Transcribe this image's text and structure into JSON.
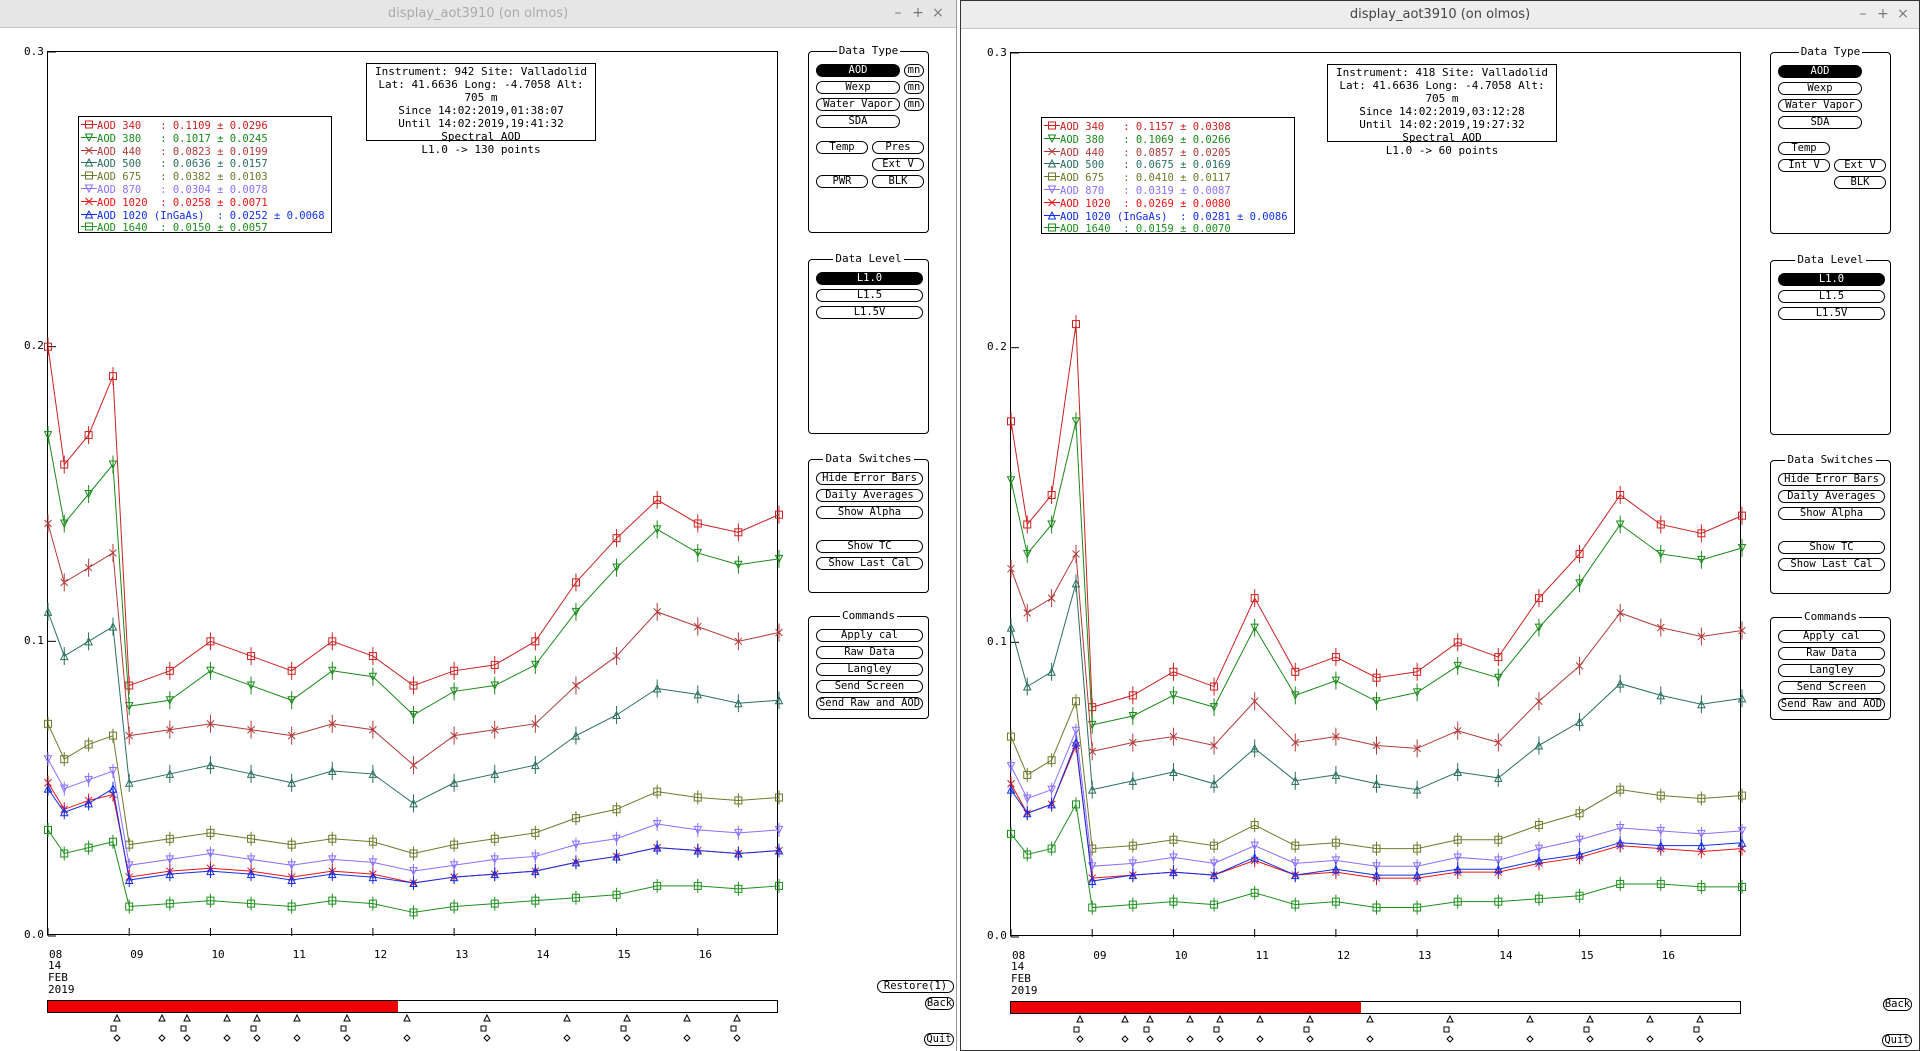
{
  "windows": [
    {
      "title": "display_aot3910 (on olmos)",
      "info": [
        "Instrument: 942 Site: Valladolid",
        "Lat: 41.6636 Long: -4.7058 Alt: 705 m",
        "Since 14:02:2019,01:38:07",
        "Until 14:02:2019,19:41:32",
        "Spectral AOD",
        "L1.0 -> 130 points"
      ],
      "legend": [
        {
          "name": "AOD 340",
          "text": "AOD 340   : 0.1109 ± 0.0296",
          "color": "#cc2020",
          "marker": "square"
        },
        {
          "name": "AOD 380",
          "text": "AOD 380   : 0.1017 ± 0.0245",
          "color": "#1a8a1a",
          "marker": "tri-down"
        },
        {
          "name": "AOD 440",
          "text": "AOD 440   : 0.0823 ± 0.0199",
          "color": "#b23a3a",
          "marker": "x"
        },
        {
          "name": "AOD 500",
          "text": "AOD 500   : 0.0636 ± 0.0157",
          "color": "#2a6f5e",
          "marker": "tri-up"
        },
        {
          "name": "AOD 675",
          "text": "AOD 675   : 0.0382 ± 0.0103",
          "color": "#6b7a2a",
          "marker": "square"
        },
        {
          "name": "AOD 870",
          "text": "AOD 870   : 0.0304 ± 0.0078",
          "color": "#8a6fff",
          "marker": "tri-down"
        },
        {
          "name": "AOD 1020",
          "text": "AOD 1020  : 0.0258 ± 0.0071",
          "color": "#ee1111",
          "marker": "x"
        },
        {
          "name": "AOD 1020 (InGaAs)",
          "text": "AOD 1020 (InGaAs)  : 0.0252 ± 0.0068",
          "color": "#1030ee",
          "marker": "tri-up"
        },
        {
          "name": "AOD 1640",
          "text": "AOD 1640  : 0.0150 ± 0.0057",
          "color": "#1d8f1d",
          "marker": "square"
        }
      ],
      "data_type": {
        "title": "Data Type",
        "items": [
          {
            "label": "AOD",
            "selected": true,
            "mn": true
          },
          {
            "label": "Wexp",
            "mn": true
          },
          {
            "label": "Water Vapor",
            "mn": true
          },
          {
            "label": "SDA"
          }
        ],
        "row1": [
          "Temp",
          "Pres"
        ],
        "row2": [
          "Ext V"
        ],
        "row3": [
          "PWR",
          "BLK"
        ],
        "mn": "mn"
      },
      "time_fill": 0.48
    },
    {
      "title": "display_aot3910 (on olmos)",
      "info": [
        "Instrument: 418 Site: Valladolid",
        "Lat: 41.6636 Long: -4.7058 Alt: 705 m",
        "Since 14:02:2019,03:12:28",
        "Until 14:02:2019,19:27:32",
        "Spectral AOD",
        "L1.0 -> 60 points"
      ],
      "legend": [
        {
          "name": "AOD 340",
          "text": "AOD 340   : 0.1157 ± 0.0308",
          "color": "#cc2020",
          "marker": "square"
        },
        {
          "name": "AOD 380",
          "text": "AOD 380   : 0.1069 ± 0.0266",
          "color": "#1a8a1a",
          "marker": "tri-down"
        },
        {
          "name": "AOD 440",
          "text": "AOD 440   : 0.0857 ± 0.0205",
          "color": "#b23a3a",
          "marker": "x"
        },
        {
          "name": "AOD 500",
          "text": "AOD 500   : 0.0675 ± 0.0169",
          "color": "#2a6f5e",
          "marker": "tri-up"
        },
        {
          "name": "AOD 675",
          "text": "AOD 675   : 0.0410 ± 0.0117",
          "color": "#6b7a2a",
          "marker": "square"
        },
        {
          "name": "AOD 870",
          "text": "AOD 870   : 0.0319 ± 0.0087",
          "color": "#8a6fff",
          "marker": "tri-down"
        },
        {
          "name": "AOD 1020",
          "text": "AOD 1020  : 0.0269 ± 0.0080",
          "color": "#ee1111",
          "marker": "x"
        },
        {
          "name": "AOD 1020 (InGaAs)",
          "text": "AOD 1020 (InGaAs)  : 0.0281 ± 0.0086",
          "color": "#1030ee",
          "marker": "tri-up"
        },
        {
          "name": "AOD 1640",
          "text": "AOD 1640  : 0.0159 ± 0.0070",
          "color": "#1d8f1d",
          "marker": "square"
        }
      ],
      "data_type": {
        "title": "Data Type",
        "items": [
          {
            "label": "AOD",
            "selected": true
          },
          {
            "label": "Wexp"
          },
          {
            "label": "Water Vapor"
          },
          {
            "label": "SDA"
          }
        ],
        "row1": [
          "Temp"
        ],
        "row2": [
          "Int V",
          "Ext V"
        ],
        "row3": [
          "BLK"
        ]
      },
      "time_fill": 0.48
    }
  ],
  "shared": {
    "yticks": [
      "0.3",
      "0.2",
      "0.1",
      "0.0"
    ],
    "xticks": [
      "08",
      "09",
      "10",
      "11",
      "12",
      "13",
      "14",
      "15",
      "16"
    ],
    "xsub": [
      "14",
      "FEB",
      "2019"
    ],
    "data_level": {
      "title": "Data Level",
      "items": [
        "L1.0",
        "L1.5",
        "L1.5V"
      ]
    },
    "data_switches": {
      "title": "Data Switches",
      "items": [
        "Hide Error Bars",
        "Daily Averages",
        "Show Alpha",
        "Show TC",
        "Show Last Cal"
      ]
    },
    "commands": {
      "title": "Commands",
      "items": [
        "Apply cal",
        "Raw Data",
        "Langley",
        "Send Screen",
        "Send Raw and AOD"
      ]
    },
    "restore": "Restore(1)",
    "back": "Back",
    "quit": "Quit",
    "window_buttons": [
      "–",
      "+",
      "×"
    ]
  },
  "chart_data": [
    {
      "type": "line",
      "title": "Spectral AOD",
      "x": [
        8.0,
        8.2,
        8.5,
        8.8,
        9.0,
        9.5,
        10.0,
        10.5,
        11.0,
        11.5,
        12.0,
        12.5,
        13.0,
        13.5,
        14.0,
        14.5,
        15.0,
        15.5,
        16.0,
        16.5,
        17.0
      ],
      "ylim": [
        0.0,
        0.3
      ],
      "xlabel_ticks": [
        "08",
        "09",
        "10",
        "11",
        "12",
        "13",
        "14",
        "15",
        "16"
      ],
      "series": [
        {
          "name": "AOD 340",
          "values": [
            0.2,
            0.16,
            0.17,
            0.19,
            0.085,
            0.09,
            0.1,
            0.095,
            0.09,
            0.1,
            0.095,
            0.085,
            0.09,
            0.092,
            0.1,
            0.12,
            0.135,
            0.148,
            0.14,
            0.137,
            0.143
          ]
        },
        {
          "name": "AOD 380",
          "values": [
            0.17,
            0.14,
            0.15,
            0.16,
            0.078,
            0.08,
            0.09,
            0.085,
            0.08,
            0.09,
            0.088,
            0.075,
            0.083,
            0.085,
            0.092,
            0.11,
            0.125,
            0.138,
            0.13,
            0.126,
            0.128
          ]
        },
        {
          "name": "AOD 440",
          "values": [
            0.14,
            0.12,
            0.125,
            0.13,
            0.068,
            0.07,
            0.072,
            0.07,
            0.068,
            0.072,
            0.07,
            0.058,
            0.068,
            0.07,
            0.072,
            0.085,
            0.095,
            0.11,
            0.105,
            0.1,
            0.103
          ]
        },
        {
          "name": "AOD 500",
          "values": [
            0.11,
            0.095,
            0.1,
            0.105,
            0.052,
            0.055,
            0.058,
            0.055,
            0.052,
            0.056,
            0.055,
            0.045,
            0.052,
            0.055,
            0.058,
            0.068,
            0.075,
            0.084,
            0.082,
            0.079,
            0.08
          ]
        },
        {
          "name": "AOD 675",
          "values": [
            0.072,
            0.06,
            0.065,
            0.068,
            0.031,
            0.033,
            0.035,
            0.033,
            0.031,
            0.033,
            0.032,
            0.028,
            0.031,
            0.033,
            0.035,
            0.04,
            0.043,
            0.049,
            0.047,
            0.046,
            0.047
          ]
        },
        {
          "name": "AOD 870",
          "values": [
            0.06,
            0.05,
            0.053,
            0.056,
            0.024,
            0.026,
            0.028,
            0.026,
            0.024,
            0.026,
            0.025,
            0.022,
            0.024,
            0.026,
            0.027,
            0.031,
            0.033,
            0.038,
            0.036,
            0.035,
            0.036
          ]
        },
        {
          "name": "AOD 1020",
          "values": [
            0.052,
            0.043,
            0.046,
            0.048,
            0.02,
            0.022,
            0.023,
            0.022,
            0.02,
            0.022,
            0.021,
            0.018,
            0.02,
            0.021,
            0.022,
            0.025,
            0.027,
            0.03,
            0.029,
            0.028,
            0.029
          ]
        },
        {
          "name": "AOD 1020 (InGaAs)",
          "values": [
            0.05,
            0.042,
            0.045,
            0.05,
            0.019,
            0.021,
            0.022,
            0.021,
            0.019,
            0.021,
            0.02,
            0.018,
            0.02,
            0.021,
            0.022,
            0.025,
            0.027,
            0.03,
            0.029,
            0.028,
            0.029
          ]
        },
        {
          "name": "AOD 1640",
          "values": [
            0.036,
            0.028,
            0.03,
            0.032,
            0.01,
            0.011,
            0.012,
            0.011,
            0.01,
            0.012,
            0.011,
            0.008,
            0.01,
            0.011,
            0.012,
            0.013,
            0.014,
            0.017,
            0.017,
            0.016,
            0.017
          ]
        }
      ]
    },
    {
      "type": "line",
      "title": "Spectral AOD",
      "x": [
        8.0,
        8.2,
        8.5,
        8.8,
        9.0,
        9.5,
        10.0,
        10.5,
        11.0,
        11.5,
        12.0,
        12.5,
        13.0,
        13.5,
        14.0,
        14.5,
        15.0,
        15.5,
        16.0,
        16.5,
        17.0
      ],
      "ylim": [
        0.0,
        0.3
      ],
      "xlabel_ticks": [
        "08",
        "09",
        "10",
        "11",
        "12",
        "13",
        "14",
        "15",
        "16"
      ],
      "series": [
        {
          "name": "AOD 340",
          "values": [
            0.175,
            0.14,
            0.15,
            0.208,
            0.078,
            0.082,
            0.09,
            0.085,
            0.115,
            0.09,
            0.095,
            0.088,
            0.09,
            0.1,
            0.095,
            0.115,
            0.13,
            0.15,
            0.14,
            0.137,
            0.143
          ]
        },
        {
          "name": "AOD 380",
          "values": [
            0.155,
            0.13,
            0.14,
            0.175,
            0.072,
            0.075,
            0.082,
            0.078,
            0.105,
            0.082,
            0.087,
            0.08,
            0.083,
            0.092,
            0.088,
            0.105,
            0.12,
            0.14,
            0.13,
            0.128,
            0.132
          ]
        },
        {
          "name": "AOD 440",
          "values": [
            0.125,
            0.11,
            0.115,
            0.13,
            0.063,
            0.066,
            0.068,
            0.065,
            0.08,
            0.066,
            0.068,
            0.065,
            0.064,
            0.07,
            0.066,
            0.08,
            0.092,
            0.11,
            0.105,
            0.102,
            0.104
          ]
        },
        {
          "name": "AOD 500",
          "values": [
            0.105,
            0.085,
            0.09,
            0.12,
            0.05,
            0.053,
            0.056,
            0.052,
            0.064,
            0.053,
            0.055,
            0.052,
            0.05,
            0.056,
            0.054,
            0.065,
            0.073,
            0.086,
            0.082,
            0.079,
            0.081
          ]
        },
        {
          "name": "AOD 675",
          "values": [
            0.068,
            0.055,
            0.06,
            0.08,
            0.03,
            0.031,
            0.033,
            0.031,
            0.038,
            0.031,
            0.032,
            0.03,
            0.03,
            0.033,
            0.033,
            0.038,
            0.042,
            0.05,
            0.048,
            0.047,
            0.048
          ]
        },
        {
          "name": "AOD 870",
          "values": [
            0.058,
            0.047,
            0.05,
            0.07,
            0.024,
            0.025,
            0.027,
            0.025,
            0.031,
            0.025,
            0.026,
            0.024,
            0.024,
            0.027,
            0.026,
            0.03,
            0.033,
            0.037,
            0.036,
            0.035,
            0.036
          ]
        },
        {
          "name": "AOD 1020",
          "values": [
            0.052,
            0.042,
            0.045,
            0.065,
            0.02,
            0.021,
            0.022,
            0.021,
            0.026,
            0.021,
            0.022,
            0.02,
            0.02,
            0.022,
            0.022,
            0.025,
            0.027,
            0.031,
            0.03,
            0.029,
            0.03
          ]
        },
        {
          "name": "AOD 1020 (InGaAs)",
          "values": [
            0.05,
            0.042,
            0.045,
            0.066,
            0.019,
            0.021,
            0.022,
            0.021,
            0.027,
            0.021,
            0.023,
            0.021,
            0.021,
            0.023,
            0.023,
            0.026,
            0.028,
            0.032,
            0.031,
            0.031,
            0.032
          ]
        },
        {
          "name": "AOD 1640",
          "values": [
            0.035,
            0.028,
            0.03,
            0.045,
            0.01,
            0.011,
            0.012,
            0.011,
            0.015,
            0.011,
            0.012,
            0.01,
            0.01,
            0.012,
            0.012,
            0.013,
            0.014,
            0.018,
            0.018,
            0.017,
            0.017
          ]
        }
      ]
    }
  ]
}
